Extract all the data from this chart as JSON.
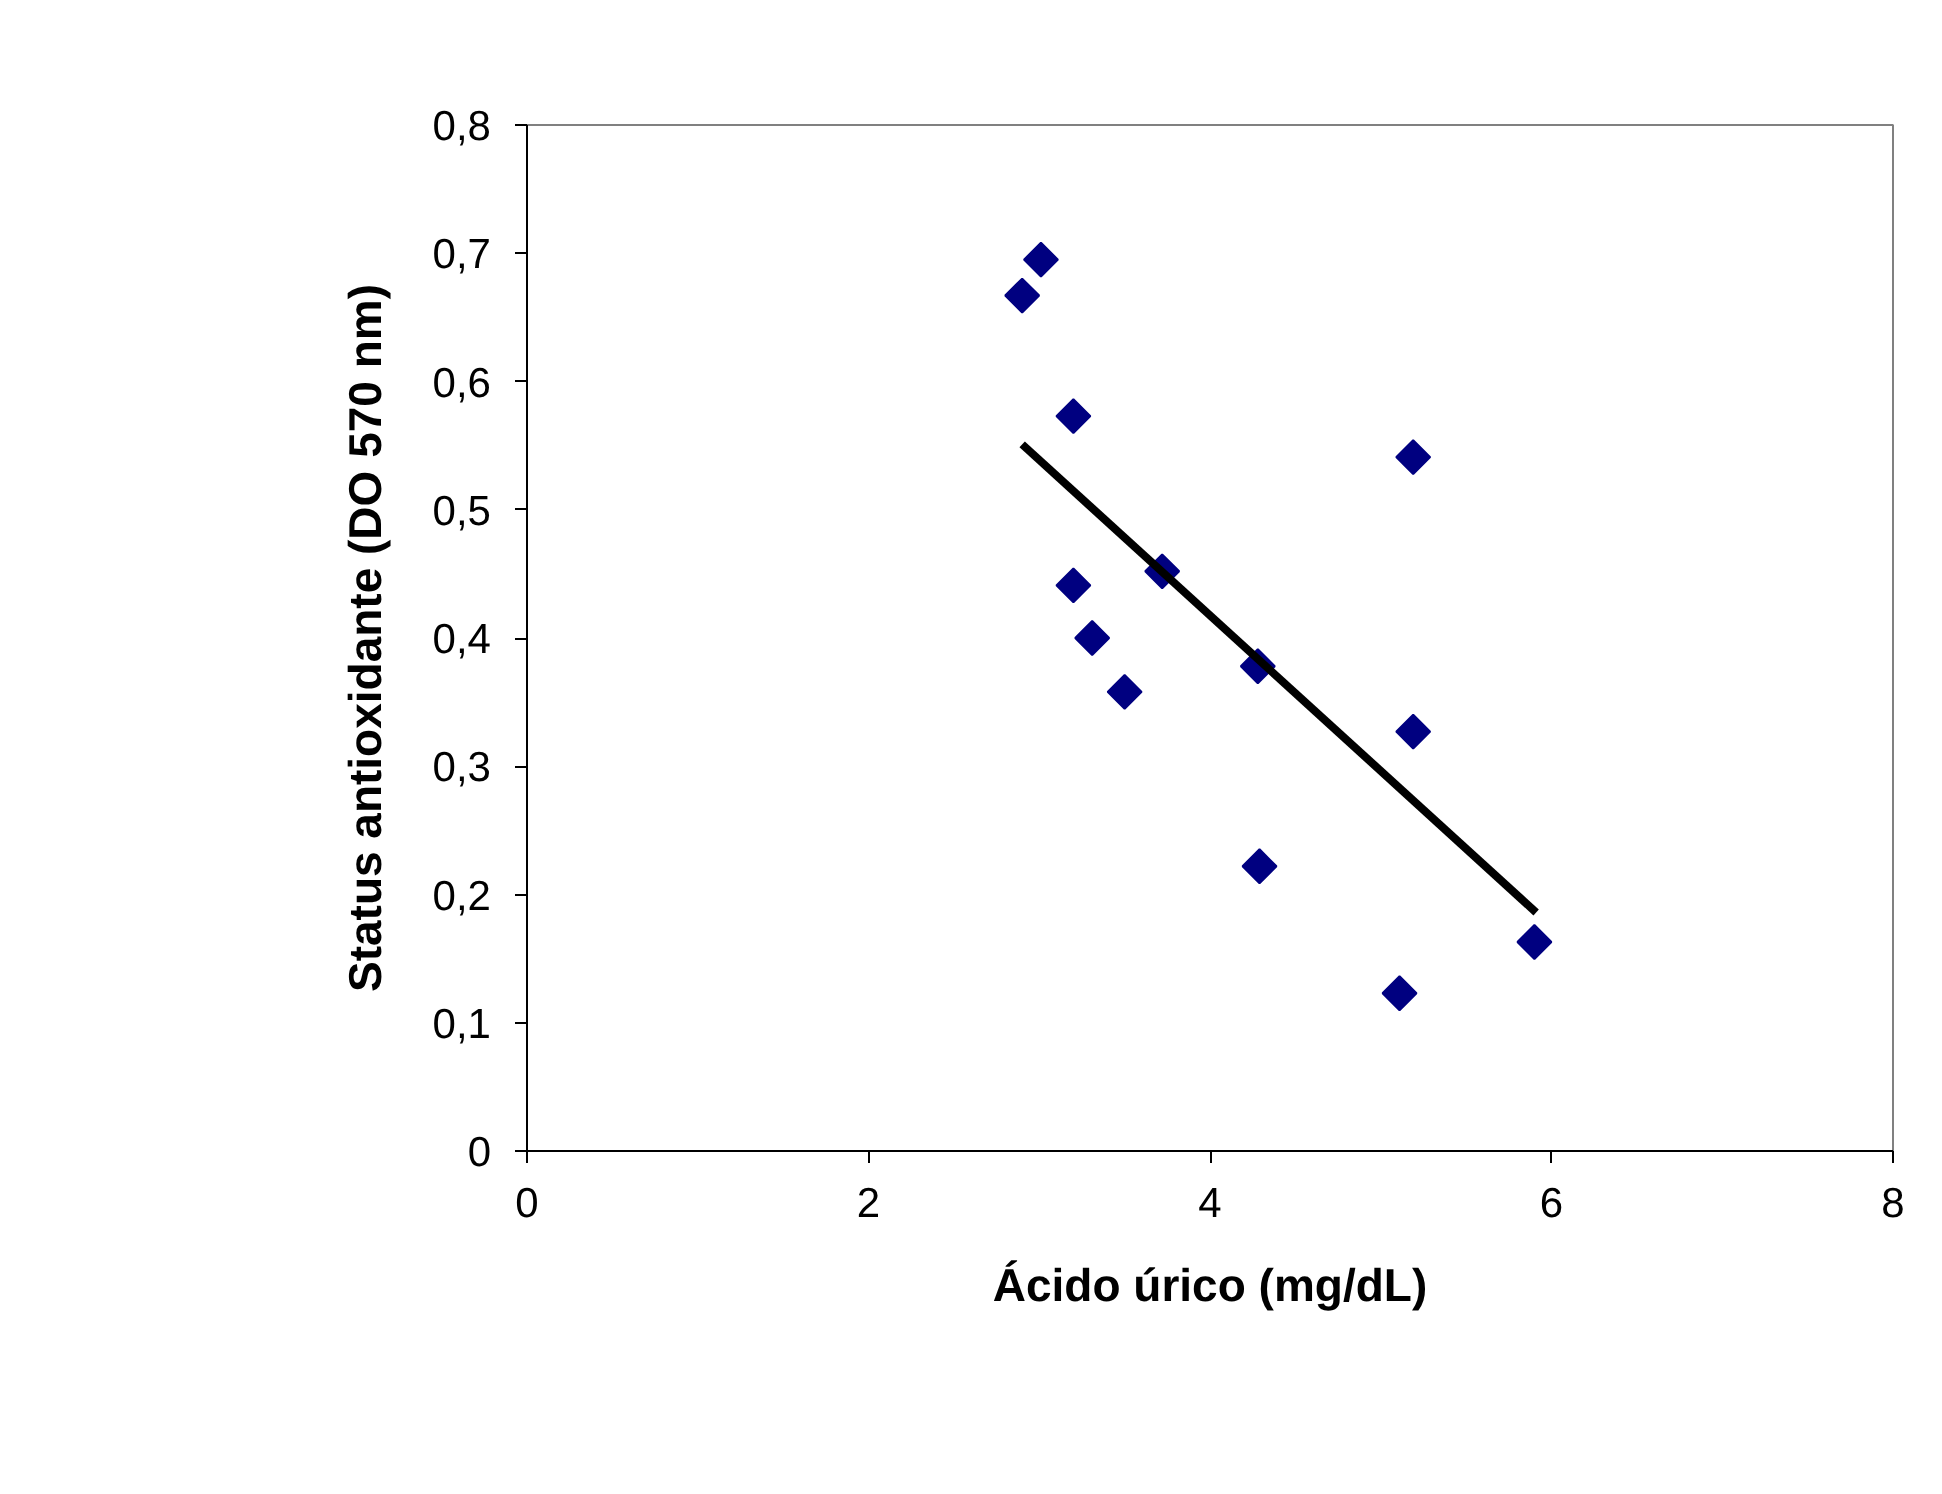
{
  "chart_data": {
    "type": "scatter",
    "xlabel": "Ácido úrico (mg/dL)",
    "ylabel": "Status antioxidante (DO 570 nm)",
    "marker": "diamond",
    "grid": false,
    "xlim": [
      0,
      8
    ],
    "xticks": [
      0,
      2,
      4,
      6,
      8
    ],
    "ylim": [
      0,
      0.8
    ],
    "yticks": [
      {
        "value": 0,
        "label": "0"
      },
      {
        "value": 0.1,
        "label": "0,1"
      },
      {
        "value": 0.2,
        "label": "0,2"
      },
      {
        "value": 0.3,
        "label": "0,3"
      },
      {
        "value": 0.4,
        "label": "0,4"
      },
      {
        "value": 0.5,
        "label": "0,5"
      },
      {
        "value": 0.6,
        "label": "0,6"
      },
      {
        "value": 0.7,
        "label": "0,7"
      },
      {
        "value": 0.8,
        "label": "0,8"
      }
    ],
    "series": [
      {
        "color": "#000080",
        "x": [
          3.01,
          2.9,
          3.2,
          3.72,
          3.2,
          3.31,
          3.5,
          4.28,
          5.19,
          5.19,
          4.29,
          5.11,
          5.9
        ],
        "values": [
          0.695,
          0.667,
          0.573,
          0.452,
          0.441,
          0.4,
          0.358,
          0.378,
          0.541,
          0.327,
          0.222,
          0.123,
          0.163
        ]
      },
      {
        "type": "line",
        "color": "#000000",
        "line_style": "solid",
        "marker": "none",
        "x": [
          2.9,
          5.91
        ],
        "values": [
          0.551,
          0.186
        ]
      }
    ]
  }
}
